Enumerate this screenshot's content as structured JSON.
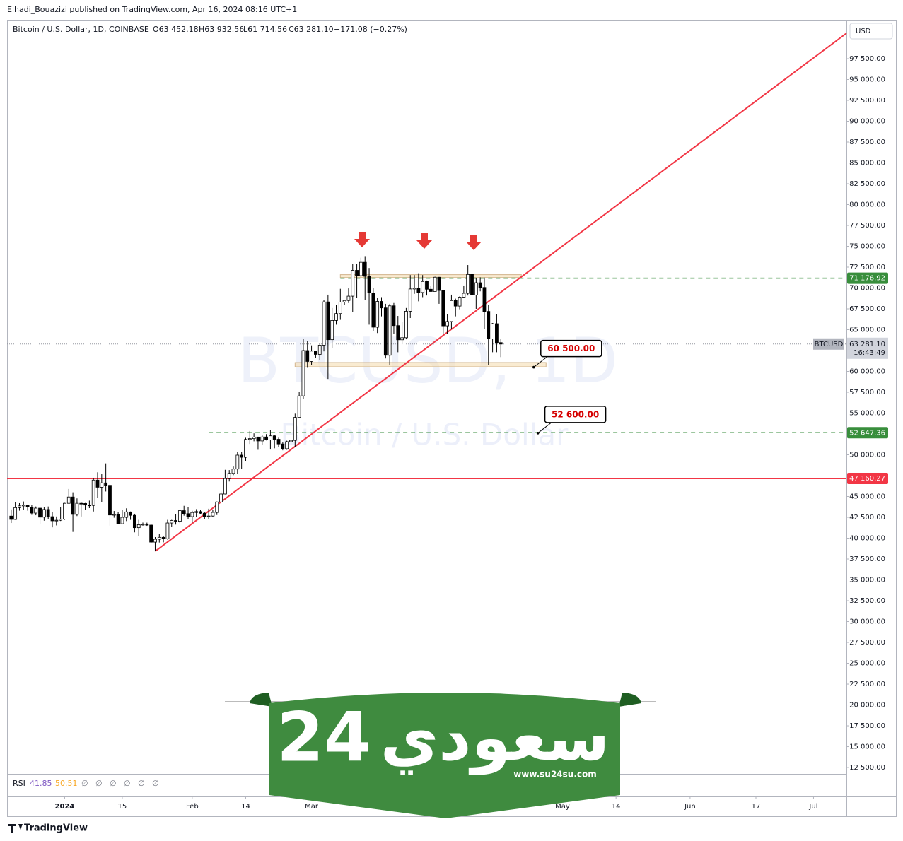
{
  "header": {
    "publisher": "Elhadi_Bouazizi published on TradingView.com, Apr 16, 2024 08:16 UTC+1"
  },
  "chart_data": {
    "type": "candlestick",
    "title": "Bitcoin / U.S. Dollar, 1D, COINBASE",
    "ohlc_labels": [
      "O63 452.18",
      "H63 932.56",
      "L61 714.56",
      "C63 281.10",
      "−171.08 (−0.27%)"
    ],
    "currency": "USD",
    "symbol": "BTCUSD",
    "countdown": "16:43:49",
    "watermark": [
      "BTCUSD, 1D",
      "Bitcoin / U.S. Dollar"
    ],
    "x": [
      "2023-12-19",
      "2023-12-20",
      "2023-12-21",
      "2023-12-22",
      "2023-12-23",
      "2023-12-24",
      "2023-12-25",
      "2023-12-26",
      "2023-12-27",
      "2023-12-28",
      "2023-12-29",
      "2023-12-30",
      "2023-12-31",
      "2024-01-01",
      "2024-01-02",
      "2024-01-03",
      "2024-01-04",
      "2024-01-05",
      "2024-01-06",
      "2024-01-07",
      "2024-01-08",
      "2024-01-09",
      "2024-01-10",
      "2024-01-11",
      "2024-01-12",
      "2024-01-13",
      "2024-01-14",
      "2024-01-15",
      "2024-01-16",
      "2024-01-17",
      "2024-01-18",
      "2024-01-19",
      "2024-01-20",
      "2024-01-21",
      "2024-01-22",
      "2024-01-23",
      "2024-01-24",
      "2024-01-25",
      "2024-01-26",
      "2024-01-27",
      "2024-01-28",
      "2024-01-29",
      "2024-01-30",
      "2024-01-31",
      "2024-02-01",
      "2024-02-02",
      "2024-02-03",
      "2024-02-04",
      "2024-02-05",
      "2024-02-06",
      "2024-02-07",
      "2024-02-08",
      "2024-02-09",
      "2024-02-10",
      "2024-02-11",
      "2024-02-12",
      "2024-02-13",
      "2024-02-14",
      "2024-02-15",
      "2024-02-16",
      "2024-02-17",
      "2024-02-18",
      "2024-02-19",
      "2024-02-20",
      "2024-02-21",
      "2024-02-22",
      "2024-02-23",
      "2024-02-24",
      "2024-02-25",
      "2024-02-26",
      "2024-02-27",
      "2024-02-28",
      "2024-02-29",
      "2024-03-01",
      "2024-03-02",
      "2024-03-03",
      "2024-03-04",
      "2024-03-05",
      "2024-03-06",
      "2024-03-07",
      "2024-03-08",
      "2024-03-09",
      "2024-03-10",
      "2024-03-11",
      "2024-03-12",
      "2024-03-13",
      "2024-03-14",
      "2024-03-15",
      "2024-03-16",
      "2024-03-17",
      "2024-03-18",
      "2024-03-19",
      "2024-03-20",
      "2024-03-21",
      "2024-03-22",
      "2024-03-23",
      "2024-03-24",
      "2024-03-25",
      "2024-03-26",
      "2024-03-27",
      "2024-03-28",
      "2024-03-29",
      "2024-03-30",
      "2024-03-31",
      "2024-04-01",
      "2024-04-02",
      "2024-04-03",
      "2024-04-04",
      "2024-04-05",
      "2024-04-06",
      "2024-04-07",
      "2024-04-08",
      "2024-04-09",
      "2024-04-10",
      "2024-04-11",
      "2024-04-12",
      "2024-04-13",
      "2024-04-14",
      "2024-04-15",
      "2024-04-16"
    ],
    "open": [
      42650,
      42250,
      43660,
      43870,
      43990,
      43730,
      43010,
      43600,
      42520,
      43440,
      42580,
      42080,
      42150,
      42280,
      44180,
      44940,
      42850,
      44180,
      44160,
      43970,
      43930,
      46970,
      46110,
      46630,
      46340,
      42780,
      42840,
      41730,
      42500,
      43150,
      42740,
      41260,
      41620,
      41670,
      41570,
      39530,
      39870,
      40100,
      39930,
      41820,
      42120,
      42030,
      43300,
      42940,
      42580,
      43080,
      43190,
      42990,
      42580,
      42660,
      43090,
      44340,
      45300,
      47150,
      47770,
      48290,
      49960,
      49700,
      51840,
      51940,
      52130,
      51660,
      52140,
      51780,
      52270,
      51860,
      51300,
      50730,
      51570,
      51730,
      54480,
      57060,
      62500,
      61190,
      62430,
      62040,
      63140,
      68330,
      63800,
      66110,
      66930,
      68300,
      68500,
      69020,
      72120,
      71480,
      73080,
      71400,
      69400,
      65300,
      68390,
      67610,
      61930,
      67860,
      65490,
      63790,
      64040,
      67210,
      69880,
      69990,
      69460,
      70780,
      69850,
      69580,
      71290,
      69700,
      65460,
      65980,
      68490,
      67830,
      68900,
      69360,
      71620,
      69150,
      70630,
      70060,
      67190,
      63900,
      65720,
      63452.18
    ],
    "high": [
      43450,
      44280,
      44200,
      44400,
      44000,
      43940,
      43800,
      43620,
      43690,
      43800,
      43110,
      42600,
      43760,
      44230,
      45900,
      45500,
      44770,
      44350,
      44220,
      44500,
      47250,
      47900,
      47700,
      48970,
      46500,
      43260,
      43100,
      43400,
      43580,
      43200,
      42930,
      42200,
      41870,
      41860,
      41650,
      40130,
      40500,
      40280,
      42200,
      42200,
      42840,
      43300,
      43880,
      43750,
      43280,
      43480,
      43380,
      43120,
      43530,
      43400,
      44400,
      45600,
      48200,
      48170,
      48590,
      50330,
      50370,
      52040,
      52850,
      52570,
      52170,
      52370,
      52480,
      52980,
      52370,
      52050,
      51540,
      51690,
      51950,
      54930,
      57550,
      63910,
      63660,
      63120,
      62460,
      63230,
      68550,
      69200,
      67600,
      67990,
      69900,
      68600,
      69950,
      72850,
      72900,
      73630,
      73820,
      72400,
      70000,
      68850,
      68900,
      68100,
      68100,
      68200,
      66650,
      65950,
      67600,
      71550,
      71550,
      71770,
      71550,
      70900,
      70300,
      71350,
      71330,
      69700,
      66900,
      69200,
      68720,
      69000,
      70300,
      72750,
      71750,
      71200,
      71280,
      71250,
      67950,
      65800,
      66880,
      63932.56
    ],
    "low": [
      41820,
      42200,
      43300,
      43420,
      43300,
      42800,
      42750,
      41650,
      42100,
      42320,
      41300,
      41530,
      42060,
      42200,
      44180,
      40750,
      42650,
      42600,
      43400,
      43600,
      43200,
      44800,
      44300,
      45600,
      41500,
      42450,
      41720,
      41720,
      42050,
      42200,
      40700,
      40280,
      41500,
      41480,
      39450,
      38500,
      39480,
      39500,
      39820,
      41400,
      41630,
      41800,
      42700,
      42280,
      41880,
      42580,
      42880,
      42270,
      42260,
      42580,
      42780,
      44330,
      45250,
      46800,
      47560,
      47710,
      48300,
      49280,
      51300,
      51620,
      50600,
      51160,
      51720,
      50630,
      50780,
      50920,
      50540,
      50600,
      51280,
      50900,
      54450,
      56690,
      60430,
      60800,
      61650,
      61340,
      62400,
      59100,
      62800,
      65600,
      66180,
      68000,
      68200,
      67100,
      68800,
      71330,
      68600,
      65600,
      64800,
      64600,
      66600,
      61550,
      60780,
      64500,
      62300,
      63250,
      63850,
      66400,
      69300,
      68400,
      68900,
      69100,
      69550,
      69580,
      68100,
      64500,
      64500,
      65100,
      66600,
      67450,
      68800,
      69100,
      68200,
      67500,
      69600,
      65100,
      60800,
      62300,
      62300,
      61714.56
    ],
    "close": [
      42250,
      43660,
      43870,
      43990,
      43730,
      43010,
      43600,
      42520,
      43440,
      42580,
      42080,
      42150,
      42280,
      44180,
      44940,
      42850,
      44180,
      44160,
      43970,
      43930,
      46970,
      46110,
      46630,
      46340,
      42780,
      42840,
      41730,
      42500,
      43150,
      42740,
      41260,
      41620,
      41670,
      41570,
      39530,
      39870,
      40100,
      39930,
      41820,
      42120,
      42030,
      43300,
      42940,
      42580,
      43080,
      43190,
      42990,
      42580,
      42660,
      43090,
      44340,
      45300,
      47150,
      47770,
      48290,
      49960,
      49700,
      51840,
      51940,
      52130,
      51660,
      52140,
      51780,
      52270,
      51860,
      51300,
      50730,
      51570,
      51730,
      54480,
      57060,
      62500,
      61190,
      62430,
      62040,
      63140,
      68330,
      63800,
      66110,
      66930,
      68300,
      68500,
      69020,
      72120,
      71480,
      73080,
      71400,
      69400,
      65300,
      68390,
      67610,
      61930,
      67860,
      65490,
      63790,
      64040,
      67210,
      69880,
      69990,
      69460,
      70780,
      69850,
      69580,
      71290,
      69700,
      65460,
      65980,
      68490,
      67830,
      68900,
      69360,
      71620,
      69150,
      70630,
      70060,
      67190,
      63900,
      65720,
      63450,
      63281.1
    ],
    "up_color": "#ffffff",
    "down_color": "#000000",
    "last_price": {
      "value": 63281.1,
      "label": "63 281.10"
    },
    "xlim": [
      "2023-12-18",
      "2024-07-09"
    ],
    "ylim": [
      11740,
      101990
    ],
    "grid": false,
    "xticks": [
      {
        "value": "2024-01-01",
        "label": "2024"
      },
      {
        "value": "2024-01-15",
        "label": "15"
      },
      {
        "value": "2024-02-01",
        "label": "Feb"
      },
      {
        "value": "2024-02-14",
        "label": "14"
      },
      {
        "value": "2024-03-01",
        "label": "Mar"
      },
      {
        "value": "2024-05-01",
        "label": "May"
      },
      {
        "value": "2024-05-14",
        "label": "14"
      },
      {
        "value": "2024-06-01",
        "label": "Jun"
      },
      {
        "value": "2024-06-17",
        "label": "17"
      },
      {
        "value": "2024-07-01",
        "label": "Jul"
      }
    ],
    "yticks": [
      {
        "value": 12500,
        "label": "12 500.00"
      },
      {
        "value": 15000,
        "label": "15 000.00"
      },
      {
        "value": 17500,
        "label": "17 500.00"
      },
      {
        "value": 20000,
        "label": "20 000.00"
      },
      {
        "value": 22500,
        "label": "22 500.00"
      },
      {
        "value": 25000,
        "label": "25 000.00"
      },
      {
        "value": 27500,
        "label": "27 500.00"
      },
      {
        "value": 30000,
        "label": "30 000.00"
      },
      {
        "value": 32500,
        "label": "32 500.00"
      },
      {
        "value": 35000,
        "label": "35 000.00"
      },
      {
        "value": 37500,
        "label": "37 500.00"
      },
      {
        "value": 40000,
        "label": "40 000.00"
      },
      {
        "value": 42500,
        "label": "42 500.00"
      },
      {
        "value": 45000,
        "label": "45 000.00"
      },
      {
        "value": 47500,
        "label": "47 500.00"
      },
      {
        "value": 50000,
        "label": "50 000.00"
      },
      {
        "value": 52500,
        "label": "52 500.00"
      },
      {
        "value": 55000,
        "label": "55 000.00"
      },
      {
        "value": 57500,
        "label": "57 500.00"
      },
      {
        "value": 60000,
        "label": "60 000.00"
      },
      {
        "value": 62500,
        "label": "62 500.00"
      },
      {
        "value": 65000,
        "label": "65 000.00"
      },
      {
        "value": 67500,
        "label": "67 500.00"
      },
      {
        "value": 70000,
        "label": "70 000.00"
      },
      {
        "value": 72500,
        "label": "72 500.00"
      },
      {
        "value": 75000,
        "label": "75 000.00"
      },
      {
        "value": 77500,
        "label": "77 500.00"
      },
      {
        "value": 80000,
        "label": "80 000.00"
      },
      {
        "value": 82500,
        "label": "82 500.00"
      },
      {
        "value": 85000,
        "label": "85 000.00"
      },
      {
        "value": 87500,
        "label": "87 500.00"
      },
      {
        "value": 90000,
        "label": "90 000.00"
      },
      {
        "value": 92500,
        "label": "92 500.00"
      },
      {
        "value": 95000,
        "label": "95 000.00"
      },
      {
        "value": 97500,
        "label": "97 500.00"
      }
    ],
    "trendline": {
      "x": [
        "2024-01-23",
        "2024-07-09"
      ],
      "y": [
        38430,
        100550
      ],
      "color": "#f23645"
    },
    "zones": [
      {
        "x": [
          "2024-03-08",
          "2024-04-21"
        ],
        "y": [
          71250,
          71600
        ]
      },
      {
        "x": [
          "2024-02-26",
          "2024-04-27"
        ],
        "y": [
          60550,
          61060
        ]
      }
    ],
    "levels": [
      {
        "price": {
          "value": 71176.92,
          "label": "71 176.92"
        },
        "color": "#388e3c",
        "dashed": true,
        "start": "2024-03-08"
      },
      {
        "price": {
          "value": 52647.36,
          "label": "52 647.36"
        },
        "color": "#388e3c",
        "dashed": true,
        "start": "2024-02-05"
      },
      {
        "price": {
          "value": 47160.27,
          "label": "47 160.27"
        },
        "color": "#f23645",
        "dashed": false
      }
    ],
    "callouts": [
      {
        "value": 60500,
        "label": "60 500.00",
        "x": "2024-04-24"
      },
      {
        "value": 52600,
        "label": "52 600.00",
        "x": "2024-04-25"
      }
    ],
    "rsi": {
      "name": "RSI",
      "values": [
        41.85,
        50.51
      ],
      "colors": [
        "#7e57c2",
        "#f9a825"
      ],
      "flags": [
        "∅",
        "∅",
        "∅",
        "∅",
        "∅",
        "∅"
      ]
    }
  },
  "overlay": {
    "brand_arabic": "سعودي",
    "brand_number": "24",
    "site": "www.su24su.com"
  },
  "footer": {
    "logo": "TradingView"
  }
}
